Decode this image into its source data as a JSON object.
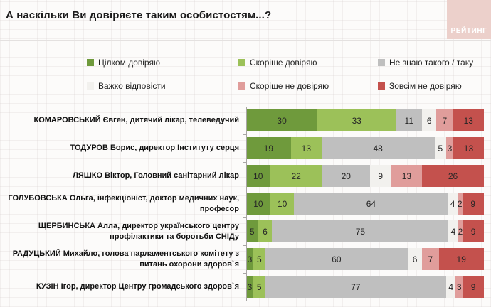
{
  "title": "А наскільки Ви довіряєте таким особистостям...?",
  "logo": {
    "text": "РЕЙТИНГ",
    "bg_color": "#ecd0cb"
  },
  "chart_data": {
    "type": "bar",
    "variant": "horizontal-stacked-100pct",
    "title": "А наскільки Ви довіряєте таким особистостям...?",
    "value_unit": "%",
    "xlim": [
      0,
      100
    ],
    "legend_position": "top",
    "grid": false,
    "categories": [
      "КОМАРОВСЬКИЙ Євген, дитячий лікар, телеведучий",
      "ТОДУРОВ Борис, директор Інституту серця",
      "ЛЯШКО Віктор, Головний санітарний лікар",
      "ГОЛУБОВСЬКА Ольга, інфекціоніст, доктор медичних наук, професор",
      "ЩЕРБИНСЬКА Алла, директор українського центру профілактики та боротьби СНІДу",
      "РАДУЦЬКИЙ Михайло, голова парламентського комітету з питань охорони здоров`я",
      "КУЗІН Ігор, директор Центру громадського здоров`я"
    ],
    "series": [
      {
        "name": "Цілком довіряю",
        "color": "#6f9a3c",
        "values": [
          30,
          19,
          10,
          10,
          5,
          3,
          3
        ]
      },
      {
        "name": "Скоріше довіряю",
        "color": "#9cc159",
        "values": [
          33,
          13,
          22,
          10,
          6,
          5,
          5
        ]
      },
      {
        "name": "Не знаю такого / таку",
        "color": "#bfbfbf",
        "values": [
          11,
          48,
          20,
          64,
          75,
          60,
          77
        ]
      },
      {
        "name": "Важко відповісти",
        "color": "#f2f1ee",
        "values": [
          6,
          5,
          9,
          4,
          4,
          6,
          4
        ]
      },
      {
        "name": "Скоріше не довіряю",
        "color": "#e09d9b",
        "values": [
          7,
          3,
          13,
          2,
          2,
          7,
          3
        ]
      },
      {
        "name": "Зовсім не довіряю",
        "color": "#c4514d",
        "values": [
          13,
          13,
          26,
          9,
          9,
          19,
          9
        ]
      }
    ]
  }
}
